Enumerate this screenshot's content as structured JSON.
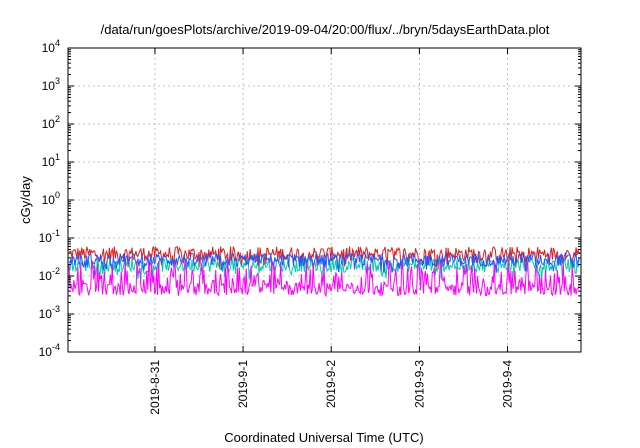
{
  "chart_data": {
    "type": "line",
    "title": "/data/run/goesPlots/archive/2019-09-04/20:00/flux/../bryn/5daysEarthData.plot",
    "xlabel": "Coordinated Universal Time (UTC)",
    "ylabel": "cGy/day",
    "y_scale": "log",
    "ylim": [
      0.0001,
      10000
    ],
    "xlim": [
      "2019-08-30T00:20",
      "2019-09-04T20:00"
    ],
    "y_ticks": [
      {
        "value": 0.0001,
        "base": "10",
        "exp": "-4"
      },
      {
        "value": 0.001,
        "base": "10",
        "exp": "-3"
      },
      {
        "value": 0.01,
        "base": "10",
        "exp": "-2"
      },
      {
        "value": 0.1,
        "base": "10",
        "exp": "-1"
      },
      {
        "value": 1,
        "base": "10",
        "exp": "0"
      },
      {
        "value": 10,
        "base": "10",
        "exp": "1"
      },
      {
        "value": 100,
        "base": "10",
        "exp": "2"
      },
      {
        "value": 1000,
        "base": "10",
        "exp": "3"
      },
      {
        "value": 10000,
        "base": "10",
        "exp": "4"
      }
    ],
    "x_ticks": [
      {
        "date": "2019-08-31T00:00",
        "label": "2019-8-31"
      },
      {
        "date": "2019-09-01T00:00",
        "label": "2019-9-1"
      },
      {
        "date": "2019-09-02T00:00",
        "label": "2019-9-2"
      },
      {
        "date": "2019-09-03T00:00",
        "label": "2019-9-3"
      },
      {
        "date": "2019-09-04T00:00",
        "label": "2019-9-4"
      }
    ],
    "grid": true,
    "legend": "none",
    "series": [
      {
        "color": "#e41a1c",
        "typical_min": 0.015,
        "typical_max": 0.06
      },
      {
        "color": "#00ccaa",
        "typical_min": 0.008,
        "typical_max": 0.03
      },
      {
        "color": "#2255ff",
        "typical_min": 0.012,
        "typical_max": 0.04
      },
      {
        "color": "#ff00ff",
        "typical_min": 0.003,
        "typical_max": 0.025
      }
    ]
  }
}
